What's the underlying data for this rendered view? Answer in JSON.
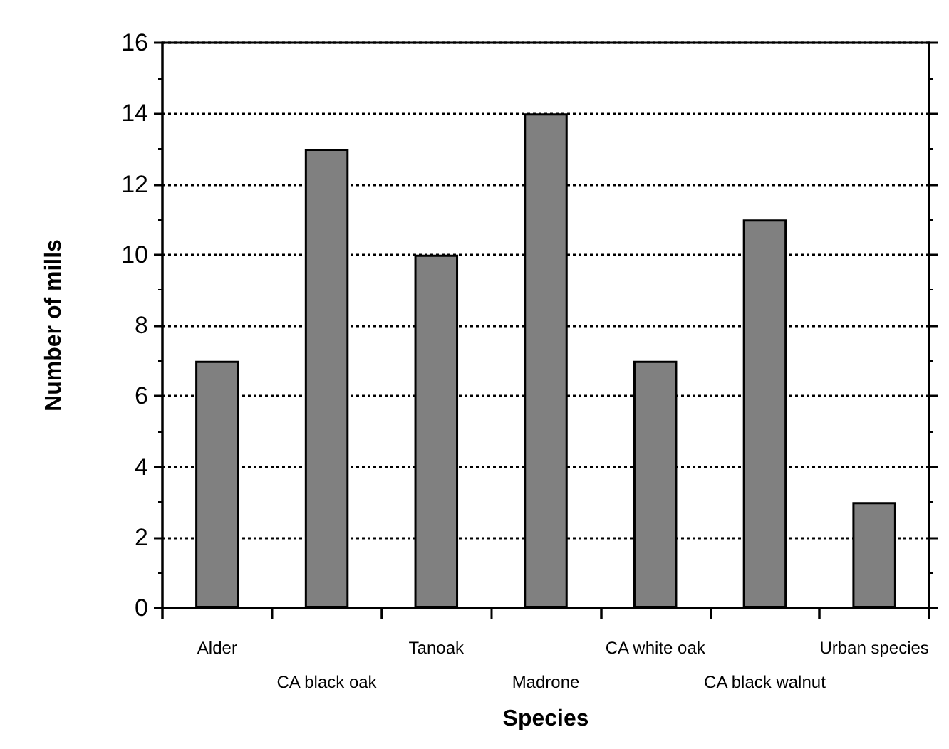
{
  "chart_data": {
    "type": "bar",
    "xlabel": "Species",
    "ylabel": "Number of mills",
    "categories": [
      "Alder",
      "CA black oak",
      "Tanoak",
      "Madrone",
      "CA white oak",
      "CA black walnut",
      "Urban species"
    ],
    "values": [
      7,
      13,
      10,
      14,
      7,
      11,
      3
    ],
    "color": "#808080",
    "ylim": [
      0,
      16
    ],
    "yticks": [
      0,
      2,
      4,
      6,
      8,
      10,
      12,
      14,
      16
    ],
    "grid": "y"
  }
}
